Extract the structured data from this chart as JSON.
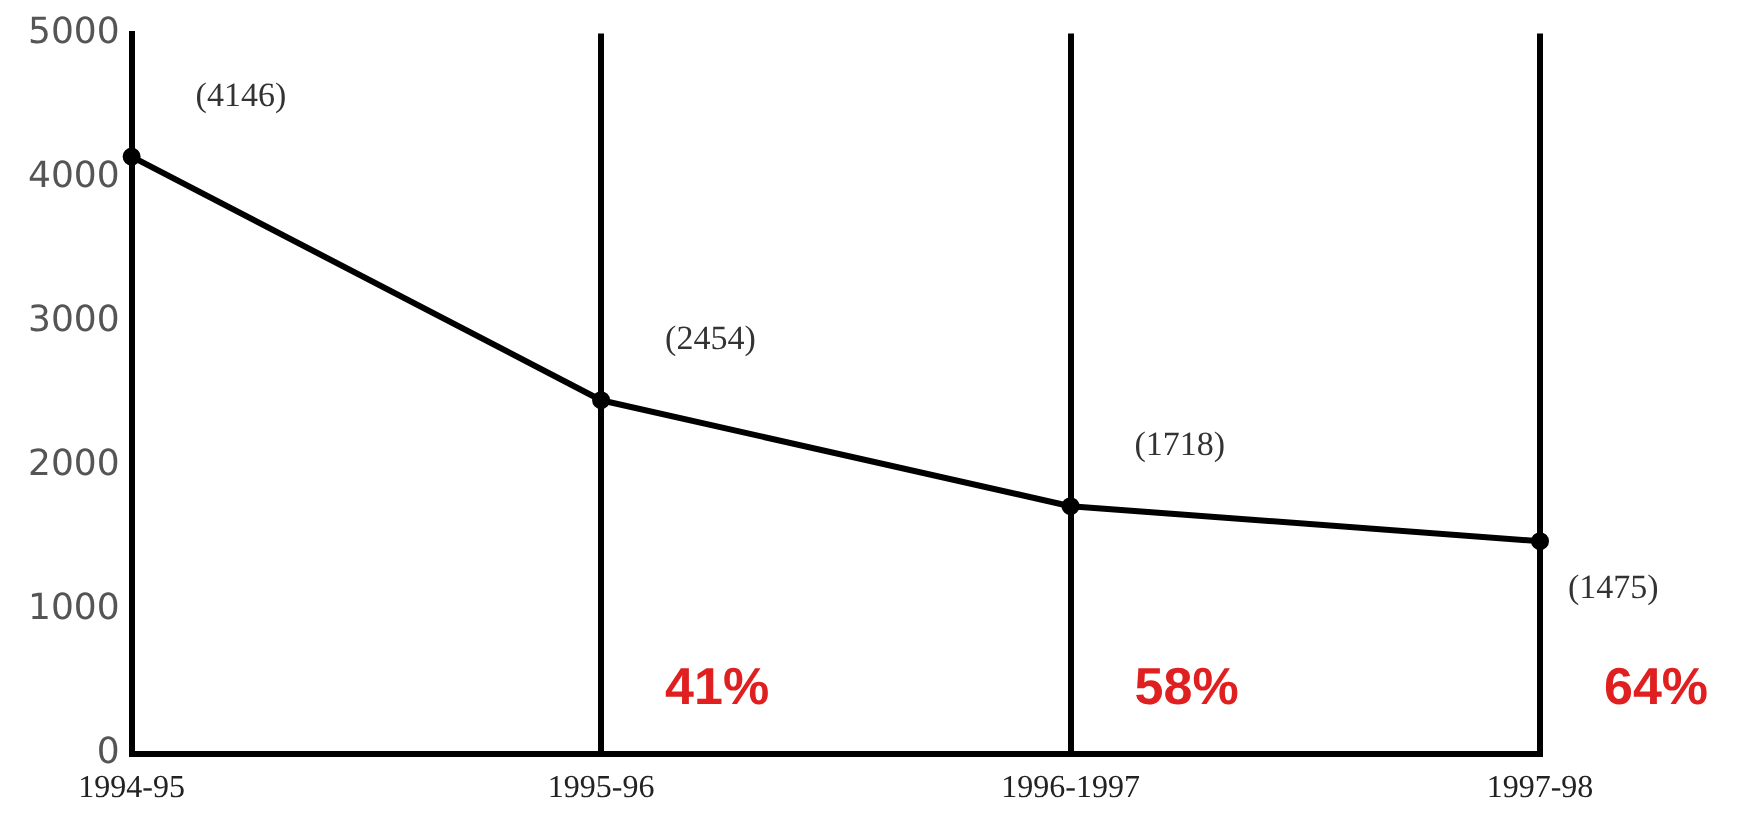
{
  "chart_data": {
    "type": "line",
    "categories": [
      "1994-95",
      "1995-96",
      "1996-1997",
      "1997-98"
    ],
    "series": [
      {
        "color": "#000000",
        "values": [
          4146,
          2454,
          1718,
          1475
        ],
        "value_labels": [
          "(4146)",
          "(2454)",
          "(1718)",
          "(1475)"
        ]
      }
    ],
    "ylim": [
      0,
      5000
    ],
    "yticks": [
      0,
      1000,
      2000,
      3000,
      4000,
      5000
    ],
    "grid": "x",
    "legend": false,
    "marker": "circle",
    "line_style": "solid",
    "annotations": [
      "41%",
      "58%",
      "64%"
    ]
  }
}
